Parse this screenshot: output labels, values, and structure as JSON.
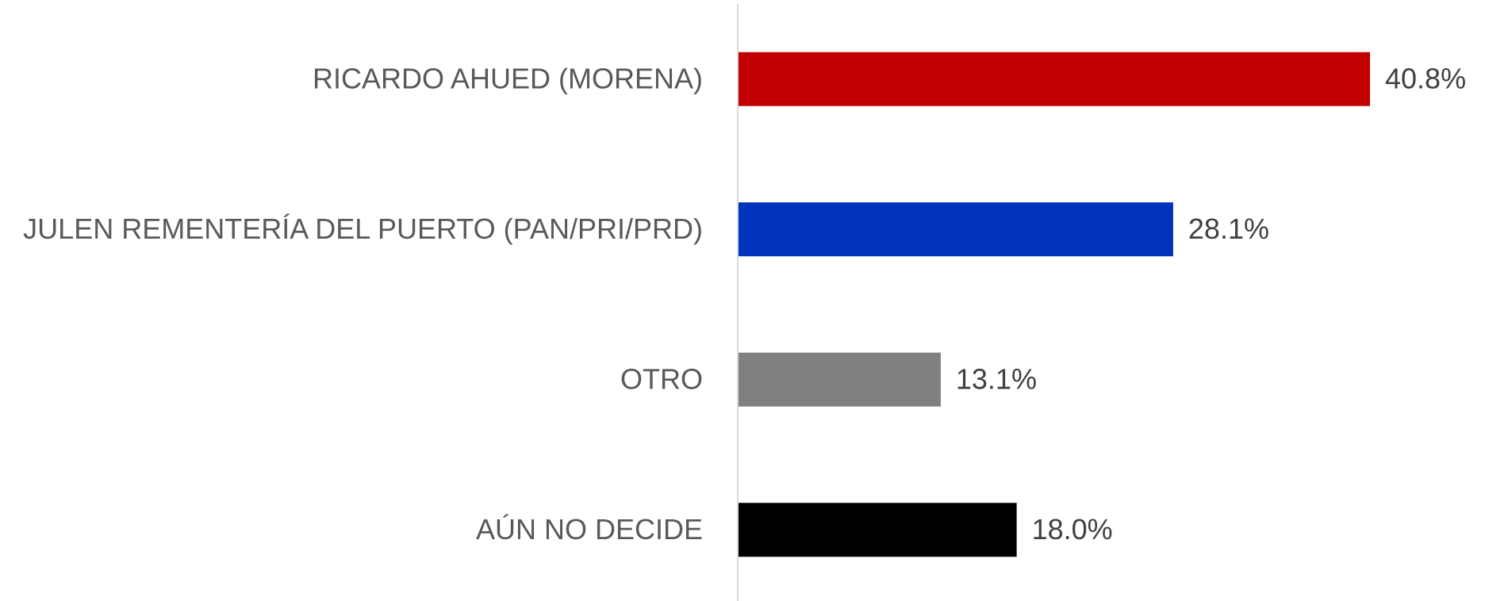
{
  "chart_data": {
    "type": "bar",
    "orientation": "horizontal",
    "categories": [
      "RICARDO AHUED (MORENA)",
      "JULEN REMENTERÍA DEL PUERTO (PAN/PRI/PRD)",
      "OTRO",
      "AÚN NO DECIDE"
    ],
    "values": [
      40.8,
      28.1,
      13.1,
      18.0
    ],
    "value_labels": [
      "40.8%",
      "28.1%",
      "13.1%",
      "18.0%"
    ],
    "colors": [
      "#c00000",
      "#0033bb",
      "#808080",
      "#000000"
    ]
  }
}
